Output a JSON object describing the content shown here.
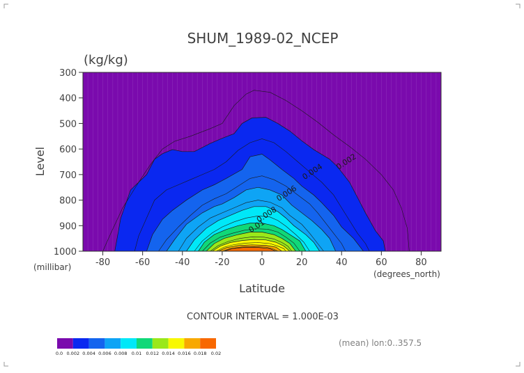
{
  "chart_data": {
    "type": "contour",
    "title": "SHUM_1989-02_NCEP",
    "units": "(kg/kg)",
    "xlabel": "Latitude",
    "ylabel": "Level",
    "x_unit_label": "(degrees_north)",
    "y_unit_label": "(millibar)",
    "xlim": [
      -90,
      90
    ],
    "ylim": [
      300,
      1000
    ],
    "y_inverted": true,
    "x_ticks": [
      -80,
      -60,
      -40,
      -20,
      0,
      20,
      40,
      60,
      80
    ],
    "x_tick_labels": [
      "-80",
      "-60",
      "-40",
      "-20",
      "0",
      "20",
      "40",
      "60",
      "80"
    ],
    "y_ticks": [
      300,
      400,
      500,
      600,
      700,
      800,
      900,
      1000
    ],
    "y_tick_labels": [
      "300",
      "400",
      "500",
      "600",
      "700",
      "800",
      "900",
      "1000"
    ],
    "contour_interval_text": "CONTOUR INTERVAL = 1.000E-03",
    "footer_text": "(mean) lon:0..357.5",
    "background_color": "#7a0aad",
    "line_labels": [
      {
        "x": -2,
        "y": 910,
        "text": "0.01"
      },
      {
        "x": 3,
        "y": 865,
        "text": "0.008"
      },
      {
        "x": 13,
        "y": 782,
        "text": "0.006"
      },
      {
        "x": 26,
        "y": 697,
        "text": "0.004"
      },
      {
        "x": 43,
        "y": 658,
        "text": "0.002"
      }
    ],
    "levels": [
      {
        "value": 0.0,
        "color": "#7a0aad"
      },
      {
        "value": 0.002,
        "color": "#0a28f0"
      },
      {
        "value": 0.004,
        "color": "#1464ee"
      },
      {
        "value": 0.006,
        "color": "#0ea4f5"
      },
      {
        "value": 0.008,
        "color": "#00e8f8"
      },
      {
        "value": 0.01,
        "color": "#10d878"
      },
      {
        "value": 0.012,
        "color": "#9ae81a"
      },
      {
        "value": 0.014,
        "color": "#f8f800"
      },
      {
        "value": 0.016,
        "color": "#f8a800"
      },
      {
        "value": 0.018,
        "color": "#f86800"
      },
      {
        "value": 0.02,
        "color": "#f80000"
      }
    ],
    "colorbar_labels": [
      "0.0",
      "0.002",
      "0.004",
      "0.006",
      "0.008",
      "0.01",
      "0.012",
      "0.014",
      "0.016",
      "0.018",
      "0.02"
    ],
    "filled_regions": [
      {
        "level": 0.002,
        "color": "#0a28f0",
        "outline": [
          [
            -74,
            1000
          ],
          [
            -71,
            870
          ],
          [
            -66,
            760
          ],
          [
            -58,
            700
          ],
          [
            -54,
            640
          ],
          [
            -50,
            618
          ],
          [
            -45,
            602
          ],
          [
            -40,
            610
          ],
          [
            -34,
            610
          ],
          [
            -26,
            578
          ],
          [
            -20,
            558
          ],
          [
            -14,
            540
          ],
          [
            -10,
            500
          ],
          [
            -5,
            478
          ],
          [
            2,
            476
          ],
          [
            8,
            500
          ],
          [
            14,
            530
          ],
          [
            20,
            568
          ],
          [
            26,
            602
          ],
          [
            34,
            640
          ],
          [
            38,
            670
          ],
          [
            44,
            730
          ],
          [
            48,
            790
          ],
          [
            52,
            850
          ],
          [
            57,
            920
          ],
          [
            61,
            960
          ],
          [
            62,
            1000
          ]
        ]
      },
      {
        "level": 0.004,
        "color": "#1464ee",
        "outline": [
          [
            -58,
            1000
          ],
          [
            -55,
            935
          ],
          [
            -50,
            875
          ],
          [
            -45,
            840
          ],
          [
            -38,
            800
          ],
          [
            -30,
            760
          ],
          [
            -24,
            740
          ],
          [
            -18,
            715
          ],
          [
            -10,
            680
          ],
          [
            -6,
            630
          ],
          [
            0,
            620
          ],
          [
            4,
            642
          ],
          [
            10,
            680
          ],
          [
            16,
            715
          ],
          [
            20,
            745
          ],
          [
            26,
            780
          ],
          [
            30,
            810
          ],
          [
            36,
            860
          ],
          [
            40,
            905
          ],
          [
            46,
            950
          ],
          [
            51,
            1000
          ]
        ]
      },
      {
        "level": 0.006,
        "color": "#0ea4f5",
        "outline": [
          [
            -48,
            1000
          ],
          [
            -44,
            955
          ],
          [
            -38,
            895
          ],
          [
            -30,
            850
          ],
          [
            -24,
            825
          ],
          [
            -20,
            815
          ],
          [
            -14,
            790
          ],
          [
            -8,
            760
          ],
          [
            -2,
            750
          ],
          [
            4,
            760
          ],
          [
            10,
            780
          ],
          [
            15,
            820
          ],
          [
            20,
            850
          ],
          [
            25,
            880
          ],
          [
            30,
            915
          ],
          [
            34,
            950
          ],
          [
            37,
            1000
          ]
        ]
      },
      {
        "level": 0.008,
        "color": "#00e8f8",
        "outline": [
          [
            -38,
            1000
          ],
          [
            -34,
            955
          ],
          [
            -28,
            910
          ],
          [
            -22,
            880
          ],
          [
            -16,
            860
          ],
          [
            -10,
            840
          ],
          [
            -4,
            825
          ],
          [
            2,
            825
          ],
          [
            8,
            845
          ],
          [
            12,
            870
          ],
          [
            16,
            900
          ],
          [
            22,
            935
          ],
          [
            26,
            965
          ],
          [
            29,
            1000
          ]
        ]
      },
      {
        "level": 0.01,
        "color": "#10d878",
        "outline": [
          [
            -32,
            1000
          ],
          [
            -29,
            965
          ],
          [
            -24,
            935
          ],
          [
            -18,
            915
          ],
          [
            -12,
            900
          ],
          [
            -6,
            890
          ],
          [
            0,
            890
          ],
          [
            6,
            900
          ],
          [
            10,
            915
          ],
          [
            14,
            935
          ],
          [
            19,
            960
          ],
          [
            22,
            1000
          ]
        ]
      },
      {
        "level": 0.012,
        "color": "#9ae81a",
        "outline": [
          [
            -28,
            1000
          ],
          [
            -24,
            970
          ],
          [
            -19,
            950
          ],
          [
            -12,
            935
          ],
          [
            -6,
            925
          ],
          [
            0,
            925
          ],
          [
            6,
            935
          ],
          [
            10,
            950
          ],
          [
            14,
            970
          ],
          [
            17,
            1000
          ]
        ]
      },
      {
        "level": 0.014,
        "color": "#f8f800",
        "outline": [
          [
            -25,
            1000
          ],
          [
            -21,
            980
          ],
          [
            -16,
            966
          ],
          [
            -10,
            958
          ],
          [
            -4,
            954
          ],
          [
            2,
            956
          ],
          [
            7,
            965
          ],
          [
            11,
            980
          ],
          [
            14,
            1000
          ]
        ]
      },
      {
        "level": 0.016,
        "color": "#f8a800",
        "outline": [
          [
            -22,
            1000
          ],
          [
            -18,
            986
          ],
          [
            -12,
            978
          ],
          [
            -5,
            975
          ],
          [
            2,
            977
          ],
          [
            7,
            984
          ],
          [
            10,
            1000
          ]
        ]
      },
      {
        "level": 0.018,
        "color": "#f86800",
        "outline": [
          [
            -19,
            1000
          ],
          [
            -15,
            990
          ],
          [
            -9,
            985
          ],
          [
            -2,
            985
          ],
          [
            4,
            990
          ],
          [
            7,
            1000
          ]
        ]
      }
    ],
    "lines": [
      {
        "level": 0.001,
        "points": [
          [
            -80,
            1000
          ],
          [
            -76,
            930
          ],
          [
            -70,
            830
          ],
          [
            -62,
            730
          ],
          [
            -56,
            660
          ],
          [
            -50,
            600
          ],
          [
            -44,
            570
          ],
          [
            -36,
            550
          ],
          [
            -26,
            520
          ],
          [
            -20,
            500
          ],
          [
            -14,
            430
          ],
          [
            -8,
            385
          ],
          [
            -4,
            370
          ],
          [
            4,
            378
          ],
          [
            12,
            410
          ],
          [
            20,
            450
          ],
          [
            28,
            495
          ],
          [
            36,
            545
          ],
          [
            44,
            590
          ],
          [
            52,
            640
          ],
          [
            60,
            700
          ],
          [
            66,
            760
          ],
          [
            70,
            830
          ],
          [
            73,
            910
          ],
          [
            74,
            1000
          ]
        ]
      },
      {
        "level": 0.003,
        "points": [
          [
            -64,
            1000
          ],
          [
            -62,
            940
          ],
          [
            -58,
            870
          ],
          [
            -54,
            800
          ],
          [
            -48,
            760
          ],
          [
            -42,
            740
          ],
          [
            -36,
            720
          ],
          [
            -30,
            700
          ],
          [
            -24,
            680
          ],
          [
            -18,
            650
          ],
          [
            -12,
            605
          ],
          [
            -6,
            575
          ],
          [
            0,
            560
          ],
          [
            6,
            575
          ],
          [
            12,
            610
          ],
          [
            18,
            650
          ],
          [
            24,
            690
          ],
          [
            30,
            730
          ],
          [
            36,
            780
          ],
          [
            40,
            830
          ],
          [
            44,
            880
          ],
          [
            48,
            930
          ],
          [
            52,
            970
          ],
          [
            54,
            1000
          ]
        ]
      },
      {
        "level": 0.005,
        "points": [
          [
            -52,
            1000
          ],
          [
            -48,
            955
          ],
          [
            -42,
            905
          ],
          [
            -36,
            860
          ],
          [
            -30,
            820
          ],
          [
            -24,
            795
          ],
          [
            -18,
            775
          ],
          [
            -12,
            745
          ],
          [
            -6,
            715
          ],
          [
            0,
            705
          ],
          [
            6,
            720
          ],
          [
            12,
            745
          ],
          [
            18,
            780
          ],
          [
            24,
            815
          ],
          [
            28,
            850
          ],
          [
            32,
            890
          ],
          [
            36,
            930
          ],
          [
            40,
            970
          ],
          [
            42,
            1000
          ]
        ]
      },
      {
        "level": 0.007,
        "points": [
          [
            -42,
            1000
          ],
          [
            -38,
            950
          ],
          [
            -32,
            905
          ],
          [
            -26,
            870
          ],
          [
            -20,
            850
          ],
          [
            -14,
            830
          ],
          [
            -8,
            810
          ],
          [
            -2,
            800
          ],
          [
            4,
            808
          ],
          [
            10,
            830
          ],
          [
            14,
            860
          ],
          [
            20,
            895
          ],
          [
            24,
            930
          ],
          [
            28,
            970
          ],
          [
            31,
            1000
          ]
        ]
      },
      {
        "level": 0.009,
        "points": [
          [
            -34,
            1000
          ],
          [
            -30,
            960
          ],
          [
            -25,
            928
          ],
          [
            -20,
            905
          ],
          [
            -14,
            885
          ],
          [
            -8,
            870
          ],
          [
            -2,
            862
          ],
          [
            4,
            866
          ],
          [
            8,
            880
          ],
          [
            12,
            902
          ],
          [
            17,
            935
          ],
          [
            21,
            965
          ],
          [
            24,
            1000
          ]
        ]
      },
      {
        "level": 0.011,
        "points": [
          [
            -30,
            1000
          ],
          [
            -26,
            968
          ],
          [
            -21,
            945
          ],
          [
            -15,
            930
          ],
          [
            -9,
            918
          ],
          [
            -3,
            912
          ],
          [
            3,
            914
          ],
          [
            8,
            925
          ],
          [
            12,
            945
          ],
          [
            16,
            968
          ],
          [
            19,
            1000
          ]
        ]
      },
      {
        "level": 0.013,
        "points": [
          [
            -26,
            1000
          ],
          [
            -22,
            978
          ],
          [
            -17,
            962
          ],
          [
            -11,
            950
          ],
          [
            -5,
            944
          ],
          [
            1,
            945
          ],
          [
            6,
            952
          ],
          [
            10,
            966
          ],
          [
            13,
            980
          ],
          [
            15,
            1000
          ]
        ]
      },
      {
        "level": 0.015,
        "points": [
          [
            -23,
            1000
          ],
          [
            -19,
            984
          ],
          [
            -14,
            974
          ],
          [
            -8,
            968
          ],
          [
            -2,
            966
          ],
          [
            4,
            970
          ],
          [
            8,
            980
          ],
          [
            11,
            990
          ],
          [
            12,
            1000
          ]
        ]
      },
      {
        "level": 0.017,
        "points": [
          [
            -20,
            1000
          ],
          [
            -16,
            990
          ],
          [
            -10,
            983
          ],
          [
            -4,
            982
          ],
          [
            2,
            984
          ],
          [
            6,
            992
          ],
          [
            8,
            1000
          ]
        ]
      }
    ]
  }
}
